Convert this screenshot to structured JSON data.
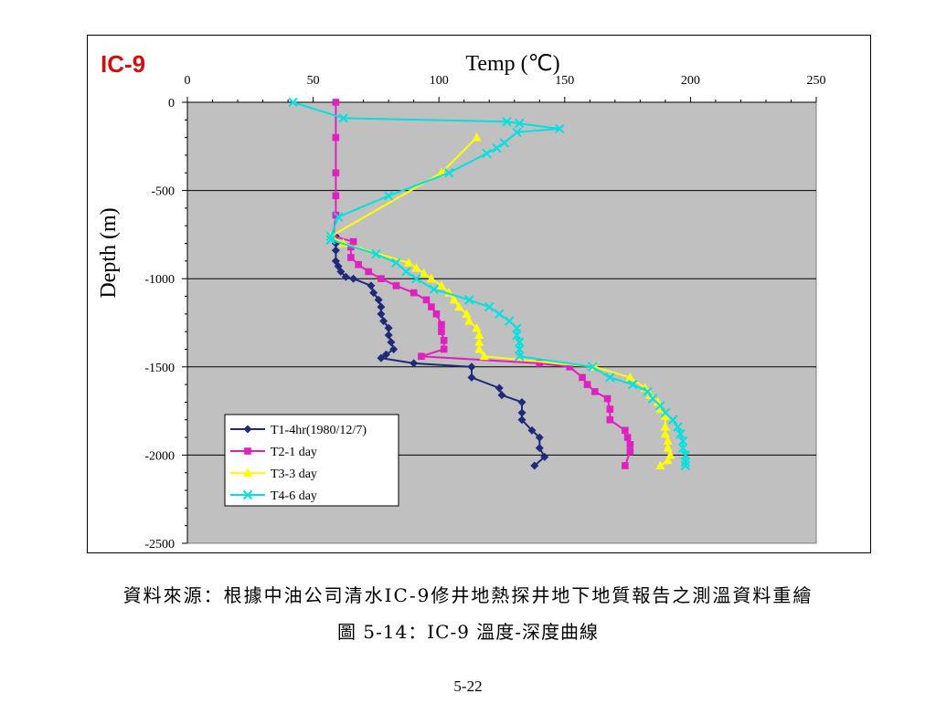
{
  "chart_data": {
    "type": "scatter",
    "panel_label": "IC-9",
    "xlabel": "Temp (℃)",
    "ylabel": "Depth (m)",
    "xlim": [
      0,
      250
    ],
    "ylim": [
      -2500,
      0
    ],
    "x_ticks": [
      "0",
      "50",
      "100",
      "150",
      "200",
      "250"
    ],
    "y_ticks": [
      "0",
      "-500",
      "-1000",
      "-1500",
      "-2000",
      "-2500"
    ],
    "x_axis_position": "top",
    "grid": "horizontal major",
    "legend_position": "lower-left",
    "plot_background": "#c0c0c0",
    "series": [
      {
        "name": "T1-4hr(1980/12/7)",
        "color": "#1f2a7a",
        "marker": "diamond",
        "points": [
          [
            59,
            -760
          ],
          [
            59,
            -800
          ],
          [
            59,
            -840
          ],
          [
            59,
            -900
          ],
          [
            60,
            -930
          ],
          [
            61,
            -960
          ],
          [
            63,
            -990
          ],
          [
            66,
            -1000
          ],
          [
            73,
            -1040
          ],
          [
            74,
            -1080
          ],
          [
            76,
            -1120
          ],
          [
            77,
            -1160
          ],
          [
            77,
            -1200
          ],
          [
            78,
            -1240
          ],
          [
            80,
            -1280
          ],
          [
            80,
            -1320
          ],
          [
            81,
            -1360
          ],
          [
            82,
            -1400
          ],
          [
            79,
            -1430
          ],
          [
            77,
            -1450
          ],
          [
            90,
            -1480
          ],
          [
            113,
            -1500
          ],
          [
            113,
            -1560
          ],
          [
            124,
            -1620
          ],
          [
            125,
            -1660
          ],
          [
            133,
            -1700
          ],
          [
            133,
            -1760
          ],
          [
            133,
            -1800
          ],
          [
            137,
            -1860
          ],
          [
            140,
            -1900
          ],
          [
            140,
            -1960
          ],
          [
            142,
            -2010
          ],
          [
            138,
            -2060
          ]
        ]
      },
      {
        "name": "T2-1 day",
        "color": "#e020c0",
        "marker": "square",
        "points": [
          [
            59,
            0
          ],
          [
            59,
            -200
          ],
          [
            59,
            -400
          ],
          [
            59,
            -530
          ],
          [
            59,
            -640
          ],
          [
            58,
            -760
          ],
          [
            66,
            -790
          ],
          [
            65,
            -820
          ],
          [
            65,
            -880
          ],
          [
            68,
            -920
          ],
          [
            72,
            -960
          ],
          [
            77,
            -1000
          ],
          [
            83,
            -1040
          ],
          [
            90,
            -1080
          ],
          [
            95,
            -1120
          ],
          [
            97,
            -1160
          ],
          [
            99,
            -1200
          ],
          [
            101,
            -1260
          ],
          [
            101,
            -1300
          ],
          [
            102,
            -1350
          ],
          [
            102,
            -1400
          ],
          [
            93,
            -1440
          ],
          [
            140,
            -1480
          ],
          [
            152,
            -1500
          ],
          [
            157,
            -1560
          ],
          [
            159,
            -1600
          ],
          [
            162,
            -1640
          ],
          [
            167,
            -1680
          ],
          [
            168,
            -1740
          ],
          [
            168,
            -1800
          ],
          [
            174,
            -1860
          ],
          [
            175,
            -1900
          ],
          [
            176,
            -1940
          ],
          [
            176,
            -1980
          ],
          [
            174,
            -2060
          ]
        ]
      },
      {
        "name": "T3-3 day",
        "color": "#ffff00",
        "marker": "triangle",
        "points": [
          [
            115,
            -200
          ],
          [
            101,
            -400
          ],
          [
            57,
            -760
          ],
          [
            62,
            -800
          ],
          [
            88,
            -910
          ],
          [
            91,
            -940
          ],
          [
            94,
            -970
          ],
          [
            97,
            -1000
          ],
          [
            101,
            -1040
          ],
          [
            104,
            -1080
          ],
          [
            106,
            -1120
          ],
          [
            108,
            -1160
          ],
          [
            111,
            -1200
          ],
          [
            112,
            -1240
          ],
          [
            115,
            -1280
          ],
          [
            116,
            -1320
          ],
          [
            116,
            -1360
          ],
          [
            116,
            -1400
          ],
          [
            118,
            -1440
          ],
          [
            162,
            -1500
          ],
          [
            176,
            -1560
          ],
          [
            182,
            -1620
          ],
          [
            184,
            -1660
          ],
          [
            187,
            -1700
          ],
          [
            188,
            -1740
          ],
          [
            190,
            -1780
          ],
          [
            190,
            -1840
          ],
          [
            190,
            -1880
          ],
          [
            191,
            -1920
          ],
          [
            191,
            -1960
          ],
          [
            192,
            -2000
          ],
          [
            191,
            -2030
          ],
          [
            188,
            -2060
          ]
        ]
      },
      {
        "name": "T4-6 day",
        "color": "#00e0e0",
        "marker": "x",
        "points": [
          [
            42,
            0
          ],
          [
            62,
            -90
          ],
          [
            127,
            -110
          ],
          [
            132,
            -120
          ],
          [
            148,
            -150
          ],
          [
            131,
            -170
          ],
          [
            126,
            -230
          ],
          [
            123,
            -260
          ],
          [
            119,
            -290
          ],
          [
            104,
            -400
          ],
          [
            80,
            -530
          ],
          [
            60,
            -650
          ],
          [
            57,
            -760
          ],
          [
            57,
            -780
          ],
          [
            75,
            -860
          ],
          [
            83,
            -910
          ],
          [
            87,
            -960
          ],
          [
            91,
            -1000
          ],
          [
            98,
            -1060
          ],
          [
            112,
            -1120
          ],
          [
            120,
            -1160
          ],
          [
            124,
            -1200
          ],
          [
            128,
            -1240
          ],
          [
            131,
            -1280
          ],
          [
            131,
            -1320
          ],
          [
            132,
            -1360
          ],
          [
            132,
            -1400
          ],
          [
            132,
            -1440
          ],
          [
            161,
            -1500
          ],
          [
            168,
            -1560
          ],
          [
            177,
            -1600
          ],
          [
            183,
            -1640
          ],
          [
            185,
            -1680
          ],
          [
            188,
            -1720
          ],
          [
            190,
            -1760
          ],
          [
            193,
            -1800
          ],
          [
            195,
            -1840
          ],
          [
            196,
            -1880
          ],
          [
            197,
            -1920
          ],
          [
            197,
            -1960
          ],
          [
            198,
            -2000
          ],
          [
            198,
            -2040
          ],
          [
            198,
            -2060
          ]
        ]
      }
    ]
  },
  "captions": {
    "source_note": "資料來源：根據中油公司清水IC-9修井地熱探井地下地質報告之測溫資料重繪",
    "figure_title": "圖  5-14：IC-9  溫度-深度曲線",
    "page_number": "5-22"
  }
}
